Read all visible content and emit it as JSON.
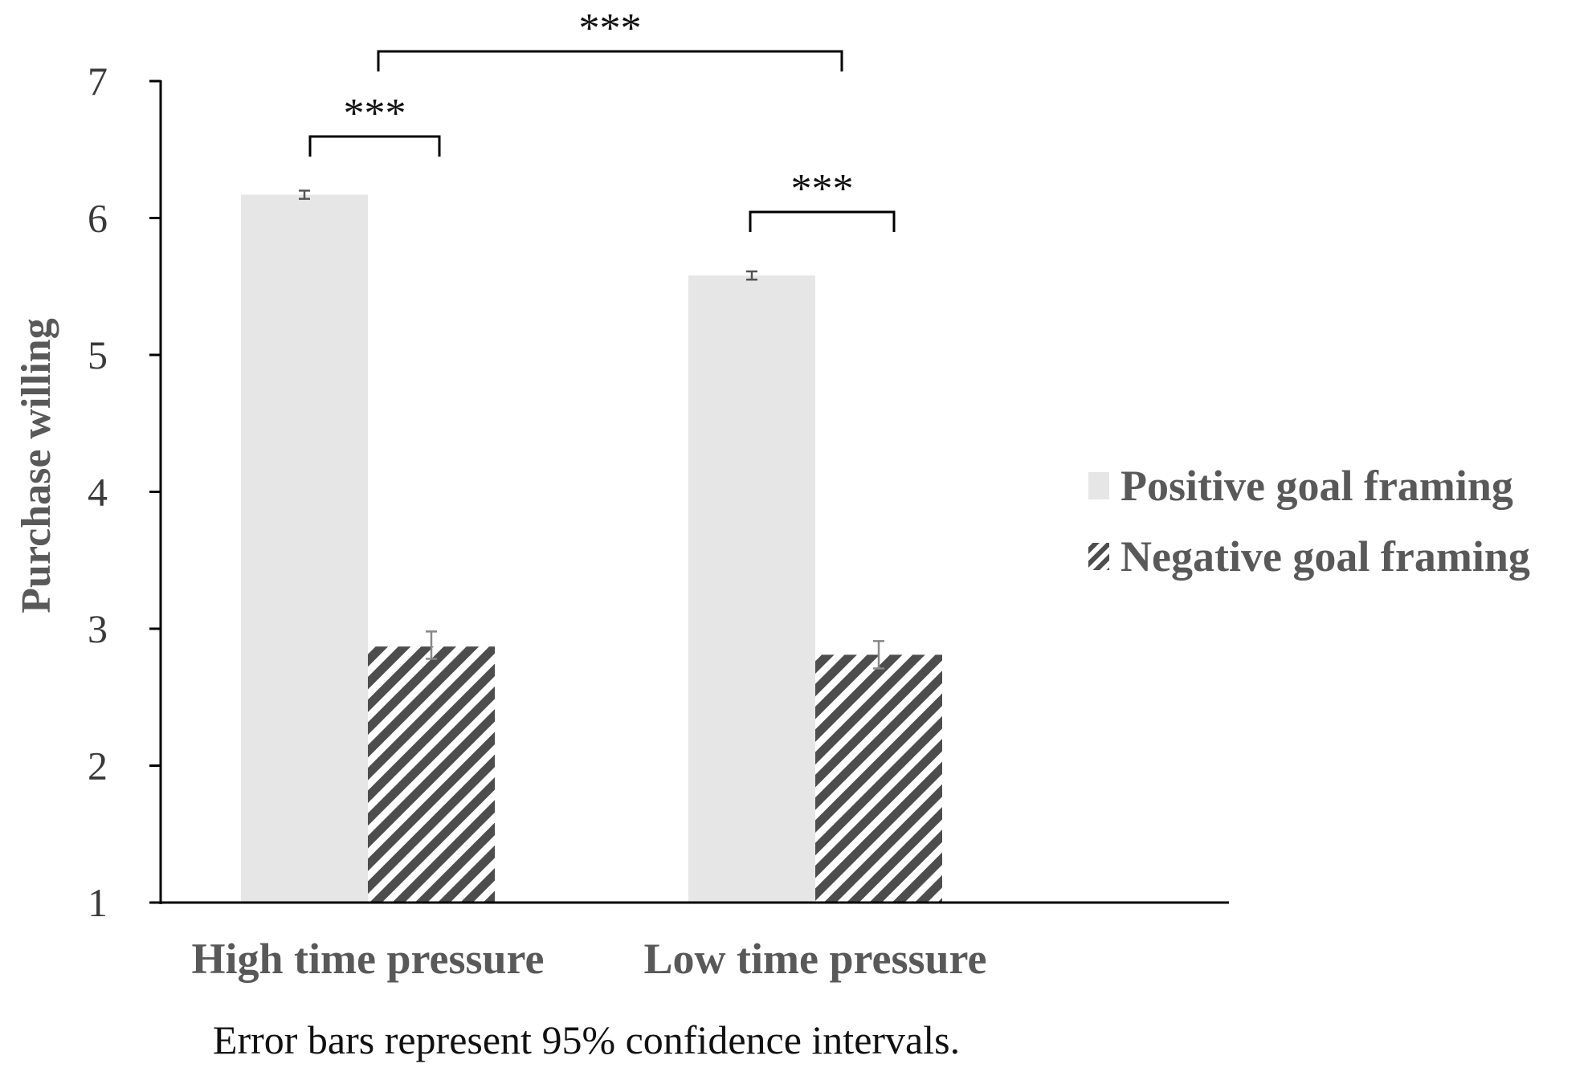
{
  "chart_data": {
    "type": "bar",
    "title": "",
    "xlabel": "",
    "ylabel": "Purchase willing",
    "ylim": [
      1,
      7
    ],
    "yticks": [
      "1",
      "2",
      "3",
      "4",
      "5",
      "6",
      "7"
    ],
    "grid": false,
    "legend_position": "right",
    "categories": [
      "High time pressure",
      "Low time pressure"
    ],
    "series": [
      {
        "name": "Positive goal framing",
        "values": [
          6.17,
          5.58
        ],
        "ci_low": [
          6.14,
          5.55
        ],
        "ci_high": [
          6.2,
          5.61
        ],
        "fill": "#e6e6e6",
        "pattern": "solid"
      },
      {
        "name": "Negative goal framing",
        "values": [
          2.87,
          2.81
        ],
        "ci_low": [
          2.78,
          2.71
        ],
        "ci_high": [
          2.98,
          2.91
        ],
        "fill": "#4d4d4d",
        "pattern": "diagonal-hatch"
      }
    ],
    "significance": [
      {
        "label": "***",
        "from": "High time pressure / Positive goal framing",
        "to": "High time pressure / Negative goal framing"
      },
      {
        "label": "***",
        "from": "Low time pressure / Positive goal framing",
        "to": "Low time pressure / Negative goal framing"
      },
      {
        "label": "***",
        "from": "High time pressure",
        "to": "Low time pressure"
      }
    ],
    "note": "Error bars represent 95% confidence intervals."
  }
}
